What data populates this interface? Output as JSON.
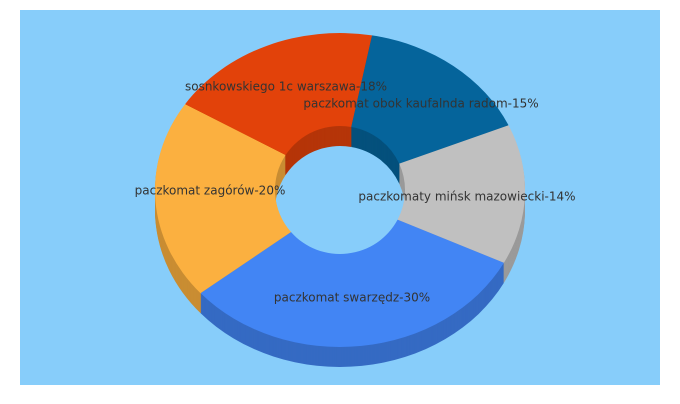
{
  "chart_data": {
    "type": "donut3d",
    "values": [
      30,
      20,
      18,
      15,
      14
    ],
    "value_labels": [
      "paczkomat swarzędz-30%",
      "paczkomat zagórów-20%",
      "sosnkowskiego 1c warszawa-18%",
      "paczkomat obok kaufalnda radom-15%",
      "paczkomaty mińsk mazowiecki-14%"
    ],
    "colors": [
      "#4285f4",
      "#fbb040",
      "#e2420a",
      "#05649b",
      "#c0c0c0"
    ]
  }
}
